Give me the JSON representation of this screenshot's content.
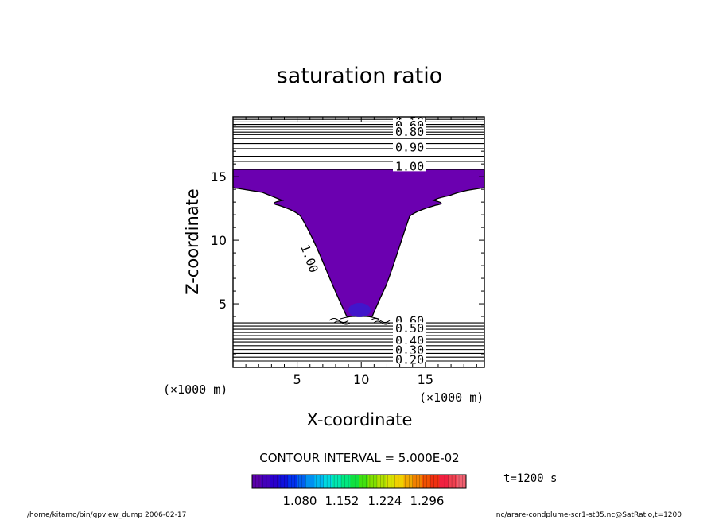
{
  "chart_data": {
    "type": "contour",
    "title": "saturation ratio",
    "xlabel": "X-coordinate",
    "ylabel": "Z-coordinate",
    "x_unit": "(×1000 m)",
    "y_unit": "(×1000 m)",
    "xlim": [
      0,
      19.6
    ],
    "ylim": [
      0,
      19.7
    ],
    "x_ticks": [
      5,
      10,
      15
    ],
    "y_ticks": [
      5,
      10,
      15
    ],
    "contour_interval_text": "CONTOUR INTERVAL = 5.000E-02",
    "contour_labels_upper": [
      "0.50",
      "0.60",
      "0.80",
      "0.90",
      "1.00"
    ],
    "contour_labels_lower": [
      "0.60",
      "0.50",
      "0.40",
      "0.30",
      "0.20"
    ],
    "inline_label": "1.00",
    "upper_isolines_z": [
      19.5,
      19.3,
      19.1,
      18.9,
      18.7,
      18.5,
      18.3,
      18.0,
      17.6,
      17.2,
      16.6,
      16.2
    ],
    "lower_isolines_z": [
      3.5,
      3.25,
      3.0,
      2.75,
      2.5,
      2.25,
      2.0,
      1.7,
      1.4,
      1.1,
      0.8,
      0.5
    ],
    "fill_color": "#6b00b0",
    "colorbar": {
      "ticks": [
        "1.080",
        "1.152",
        "1.224",
        "1.296"
      ],
      "colors": [
        "#5a00aa",
        "#4400bb",
        "#2a00cc",
        "#1010dd",
        "#0030ee",
        "#0060f0",
        "#0090f0",
        "#00b8f0",
        "#00d8e0",
        "#00e8b0",
        "#00e880",
        "#10e040",
        "#40e010",
        "#80e000",
        "#b0e000",
        "#d8e000",
        "#f0d000",
        "#f0a800",
        "#f08000",
        "#f05000",
        "#f03010",
        "#f02040",
        "#f04050",
        "#f06070"
      ]
    },
    "time_label": "t=1200 s",
    "footer_left": "/home/kitamo/bin/gpview_dump  2006-02-17",
    "footer_right": "nc/arare-condplume-scr1-st35.nc@SatRatio,t=1200"
  }
}
